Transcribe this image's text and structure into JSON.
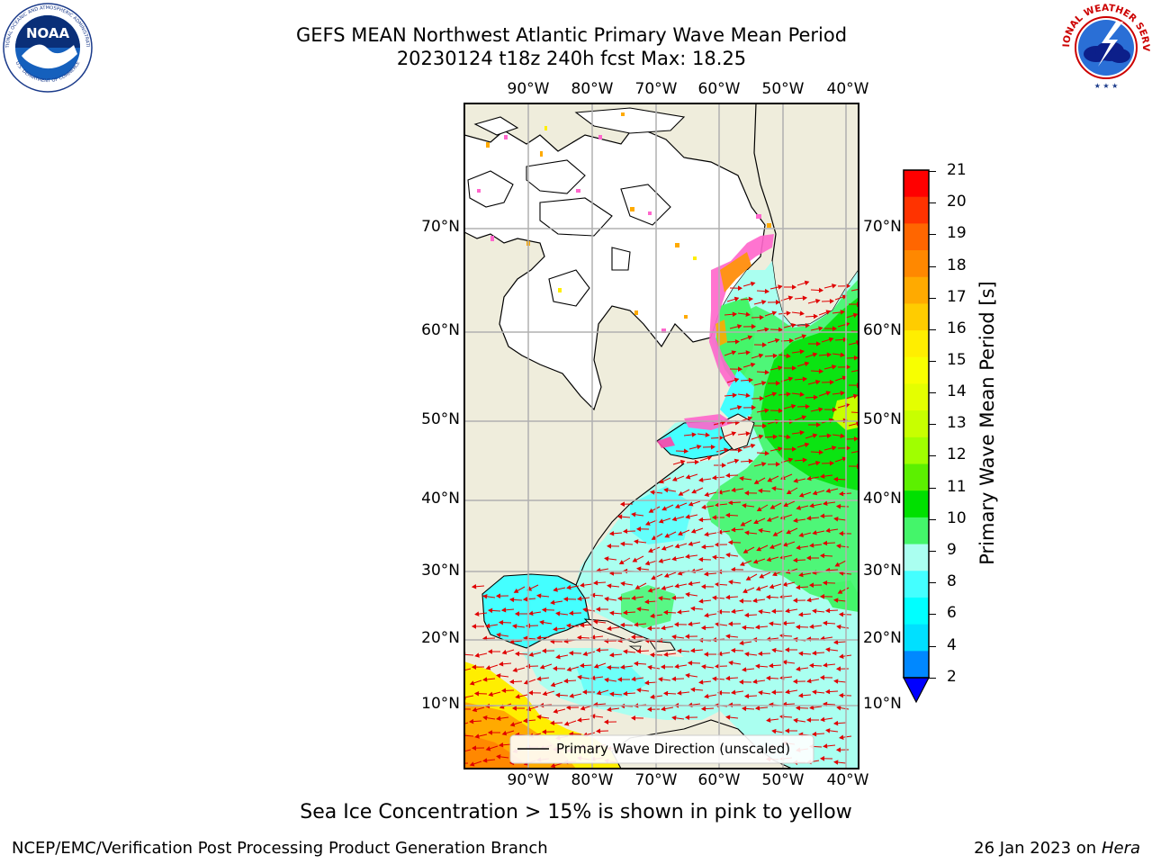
{
  "header": {
    "title_line1": "GEFS MEAN Northwest Atlantic Primary Wave Mean Period",
    "title_line2": "20230124 t18z 240h fcst   Max: 18.25"
  },
  "logos": {
    "noaa_text": "NOAA",
    "noaa_ring": "NATIONAL OCEANIC AND ATMOSPHERIC ADMINISTRATION",
    "noaa_ring_bottom": "U.S. DEPARTMENT OF COMMERCE",
    "nws_ring": "NATIONAL WEATHER SERVICE"
  },
  "map": {
    "lon_labels": [
      "90°W",
      "80°W",
      "70°W",
      "60°W",
      "50°W",
      "40°W"
    ],
    "lat_labels": [
      "70°N",
      "60°N",
      "50°N",
      "40°N",
      "30°N",
      "20°N",
      "10°N"
    ],
    "legend_label": "Primary Wave Direction (unscaled)",
    "colors": {
      "land": "#efeddc",
      "ice_free_land": "#ffffff",
      "arrow": "#e00000"
    }
  },
  "colorbar": {
    "label": "Primary Wave Mean Period [s]",
    "ticks": [
      "21",
      "20",
      "19",
      "18",
      "17",
      "16",
      "15",
      "14",
      "13",
      "12",
      "11",
      "10",
      "9",
      "8",
      "6",
      "4",
      "2"
    ],
    "colors_top_to_bottom": [
      "#ff0000",
      "#ff3300",
      "#ff6600",
      "#ff8800",
      "#ffaa00",
      "#ffcc00",
      "#ffee00",
      "#f8ff00",
      "#e4ff00",
      "#c8ff00",
      "#a0ff00",
      "#5cf000",
      "#00e000",
      "#44f56a",
      "#aafff0",
      "#44ffff",
      "#00ffff",
      "#00e0ff",
      "#0088ff"
    ],
    "under_color": "#0000ff"
  },
  "notes": {
    "ice_note": "Sea Ice Concentration > 15% is shown in pink to yellow"
  },
  "footer": {
    "left": "NCEP/EMC/Verification Post Processing Product Generation Branch",
    "right_date": "26 Jan 2023 on ",
    "right_host": "Hera"
  }
}
